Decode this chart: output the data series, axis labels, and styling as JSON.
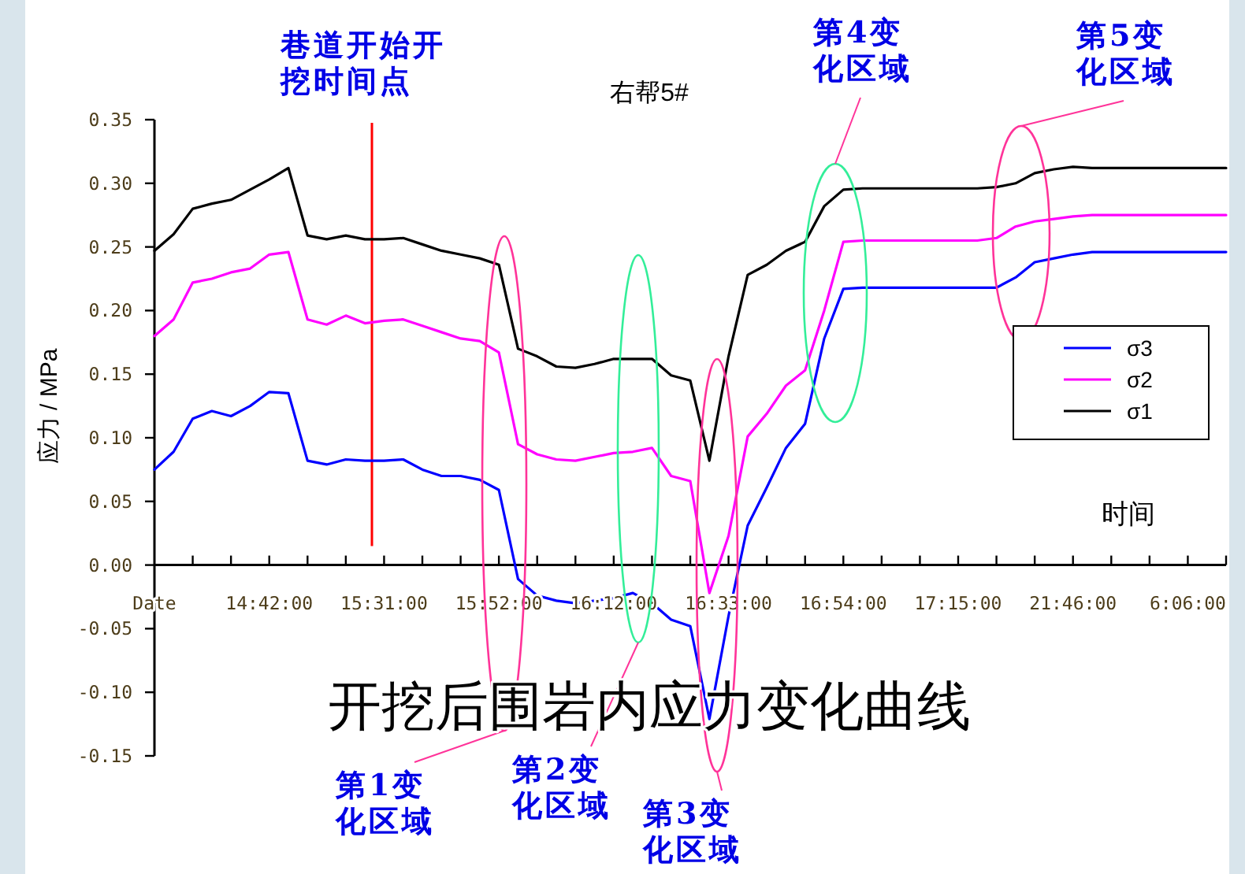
{
  "chart_data": {
    "type": "line",
    "title": "右帮5#",
    "xlabel": "时间",
    "ylabel": "应力 / MPa",
    "categories": [
      "Date",
      null,
      null,
      null,
      null,
      null,
      "14:42:00",
      null,
      null,
      null,
      null,
      null,
      "15:31:00",
      null,
      null,
      null,
      null,
      null,
      "15:52:00",
      null,
      null,
      null,
      null,
      null,
      "16:12:00",
      null,
      null,
      null,
      null,
      null,
      "16:33:00",
      null,
      null,
      null,
      null,
      null,
      "16:54:00",
      null,
      null,
      null,
      null,
      null,
      "17:15:00",
      null,
      null,
      null,
      null,
      null,
      "21:46:00",
      null,
      null,
      null,
      null,
      null,
      "6:06:00",
      null,
      null
    ],
    "ylim": [
      -0.15,
      0.35
    ],
    "yticks": [
      {
        "value": -0.15,
        "label": "-0.15"
      },
      {
        "value": -0.1,
        "label": "-0.10"
      },
      {
        "value": -0.05,
        "label": "-0.05"
      },
      {
        "value": 0,
        "label": "0.00"
      },
      {
        "value": 0.05,
        "label": "0.05"
      },
      {
        "value": 0.1,
        "label": "0.10"
      },
      {
        "value": 0.15,
        "label": "0.15"
      },
      {
        "value": 0.2,
        "label": "0.20"
      },
      {
        "value": 0.25,
        "label": "0.25"
      },
      {
        "value": 0.3,
        "label": "0.30"
      },
      {
        "value": 0.35,
        "label": "0.35"
      }
    ],
    "legend": "right",
    "marker": "none",
    "line_style": "solid",
    "grid": false,
    "series": [
      {
        "name": "σ3",
        "color": "#0000ff",
        "values": [
          0.075,
          0.089,
          0.115,
          0.121,
          0.117,
          0.125,
          0.136,
          0.135,
          0.082,
          0.079,
          0.083,
          0.082,
          0.082,
          0.083,
          0.075,
          0.07,
          0.07,
          0.067,
          0.059,
          -0.011,
          -0.024,
          -0.028,
          -0.03,
          -0.028,
          -0.026,
          -0.022,
          -0.03,
          -0.043,
          -0.048,
          -0.121,
          -0.04,
          0.031,
          0.061,
          0.092,
          0.111,
          0.178,
          0.217,
          0.218,
          0.218,
          0.218,
          0.218,
          0.218,
          0.218,
          0.218,
          0.218,
          0.226,
          0.238,
          0.241,
          0.244,
          0.246,
          0.246,
          0.246,
          0.246,
          0.246,
          0.246,
          0.246,
          0.246
        ]
      },
      {
        "name": "σ2",
        "color": "#ff00ff",
        "values": [
          0.18,
          0.193,
          0.222,
          0.225,
          0.23,
          0.233,
          0.244,
          0.246,
          0.193,
          0.189,
          0.196,
          0.19,
          0.192,
          0.193,
          0.188,
          0.183,
          0.178,
          0.176,
          0.167,
          0.095,
          0.087,
          0.083,
          0.082,
          0.085,
          0.088,
          0.089,
          0.092,
          0.07,
          0.066,
          -0.022,
          0.023,
          0.101,
          0.119,
          0.141,
          0.153,
          0.2,
          0.254,
          0.255,
          0.255,
          0.255,
          0.255,
          0.255,
          0.255,
          0.255,
          0.257,
          0.266,
          0.27,
          0.272,
          0.274,
          0.275,
          0.275,
          0.275,
          0.275,
          0.275,
          0.275,
          0.275,
          0.275
        ]
      },
      {
        "name": "σ1",
        "color": "#000000",
        "values": [
          0.247,
          0.26,
          0.28,
          0.284,
          0.287,
          0.295,
          0.303,
          0.312,
          0.259,
          0.256,
          0.259,
          0.256,
          0.256,
          0.257,
          0.252,
          0.247,
          0.244,
          0.241,
          0.236,
          0.17,
          0.164,
          0.156,
          0.155,
          0.158,
          0.162,
          0.162,
          0.162,
          0.149,
          0.145,
          0.082,
          0.164,
          0.228,
          0.236,
          0.247,
          0.254,
          0.282,
          0.295,
          0.296,
          0.296,
          0.296,
          0.296,
          0.296,
          0.296,
          0.296,
          0.297,
          0.3,
          0.308,
          0.311,
          0.313,
          0.312,
          0.312,
          0.312,
          0.312,
          0.312,
          0.312,
          0.312,
          0.312
        ]
      }
    ],
    "annotations": [
      "巷道开始开挖时间点",
      "第1变化区域",
      "第2变化区域",
      "第3变化区域",
      "第4变化区域",
      "第5变化区域",
      "开挖后围岩内应力变化曲线"
    ]
  }
}
